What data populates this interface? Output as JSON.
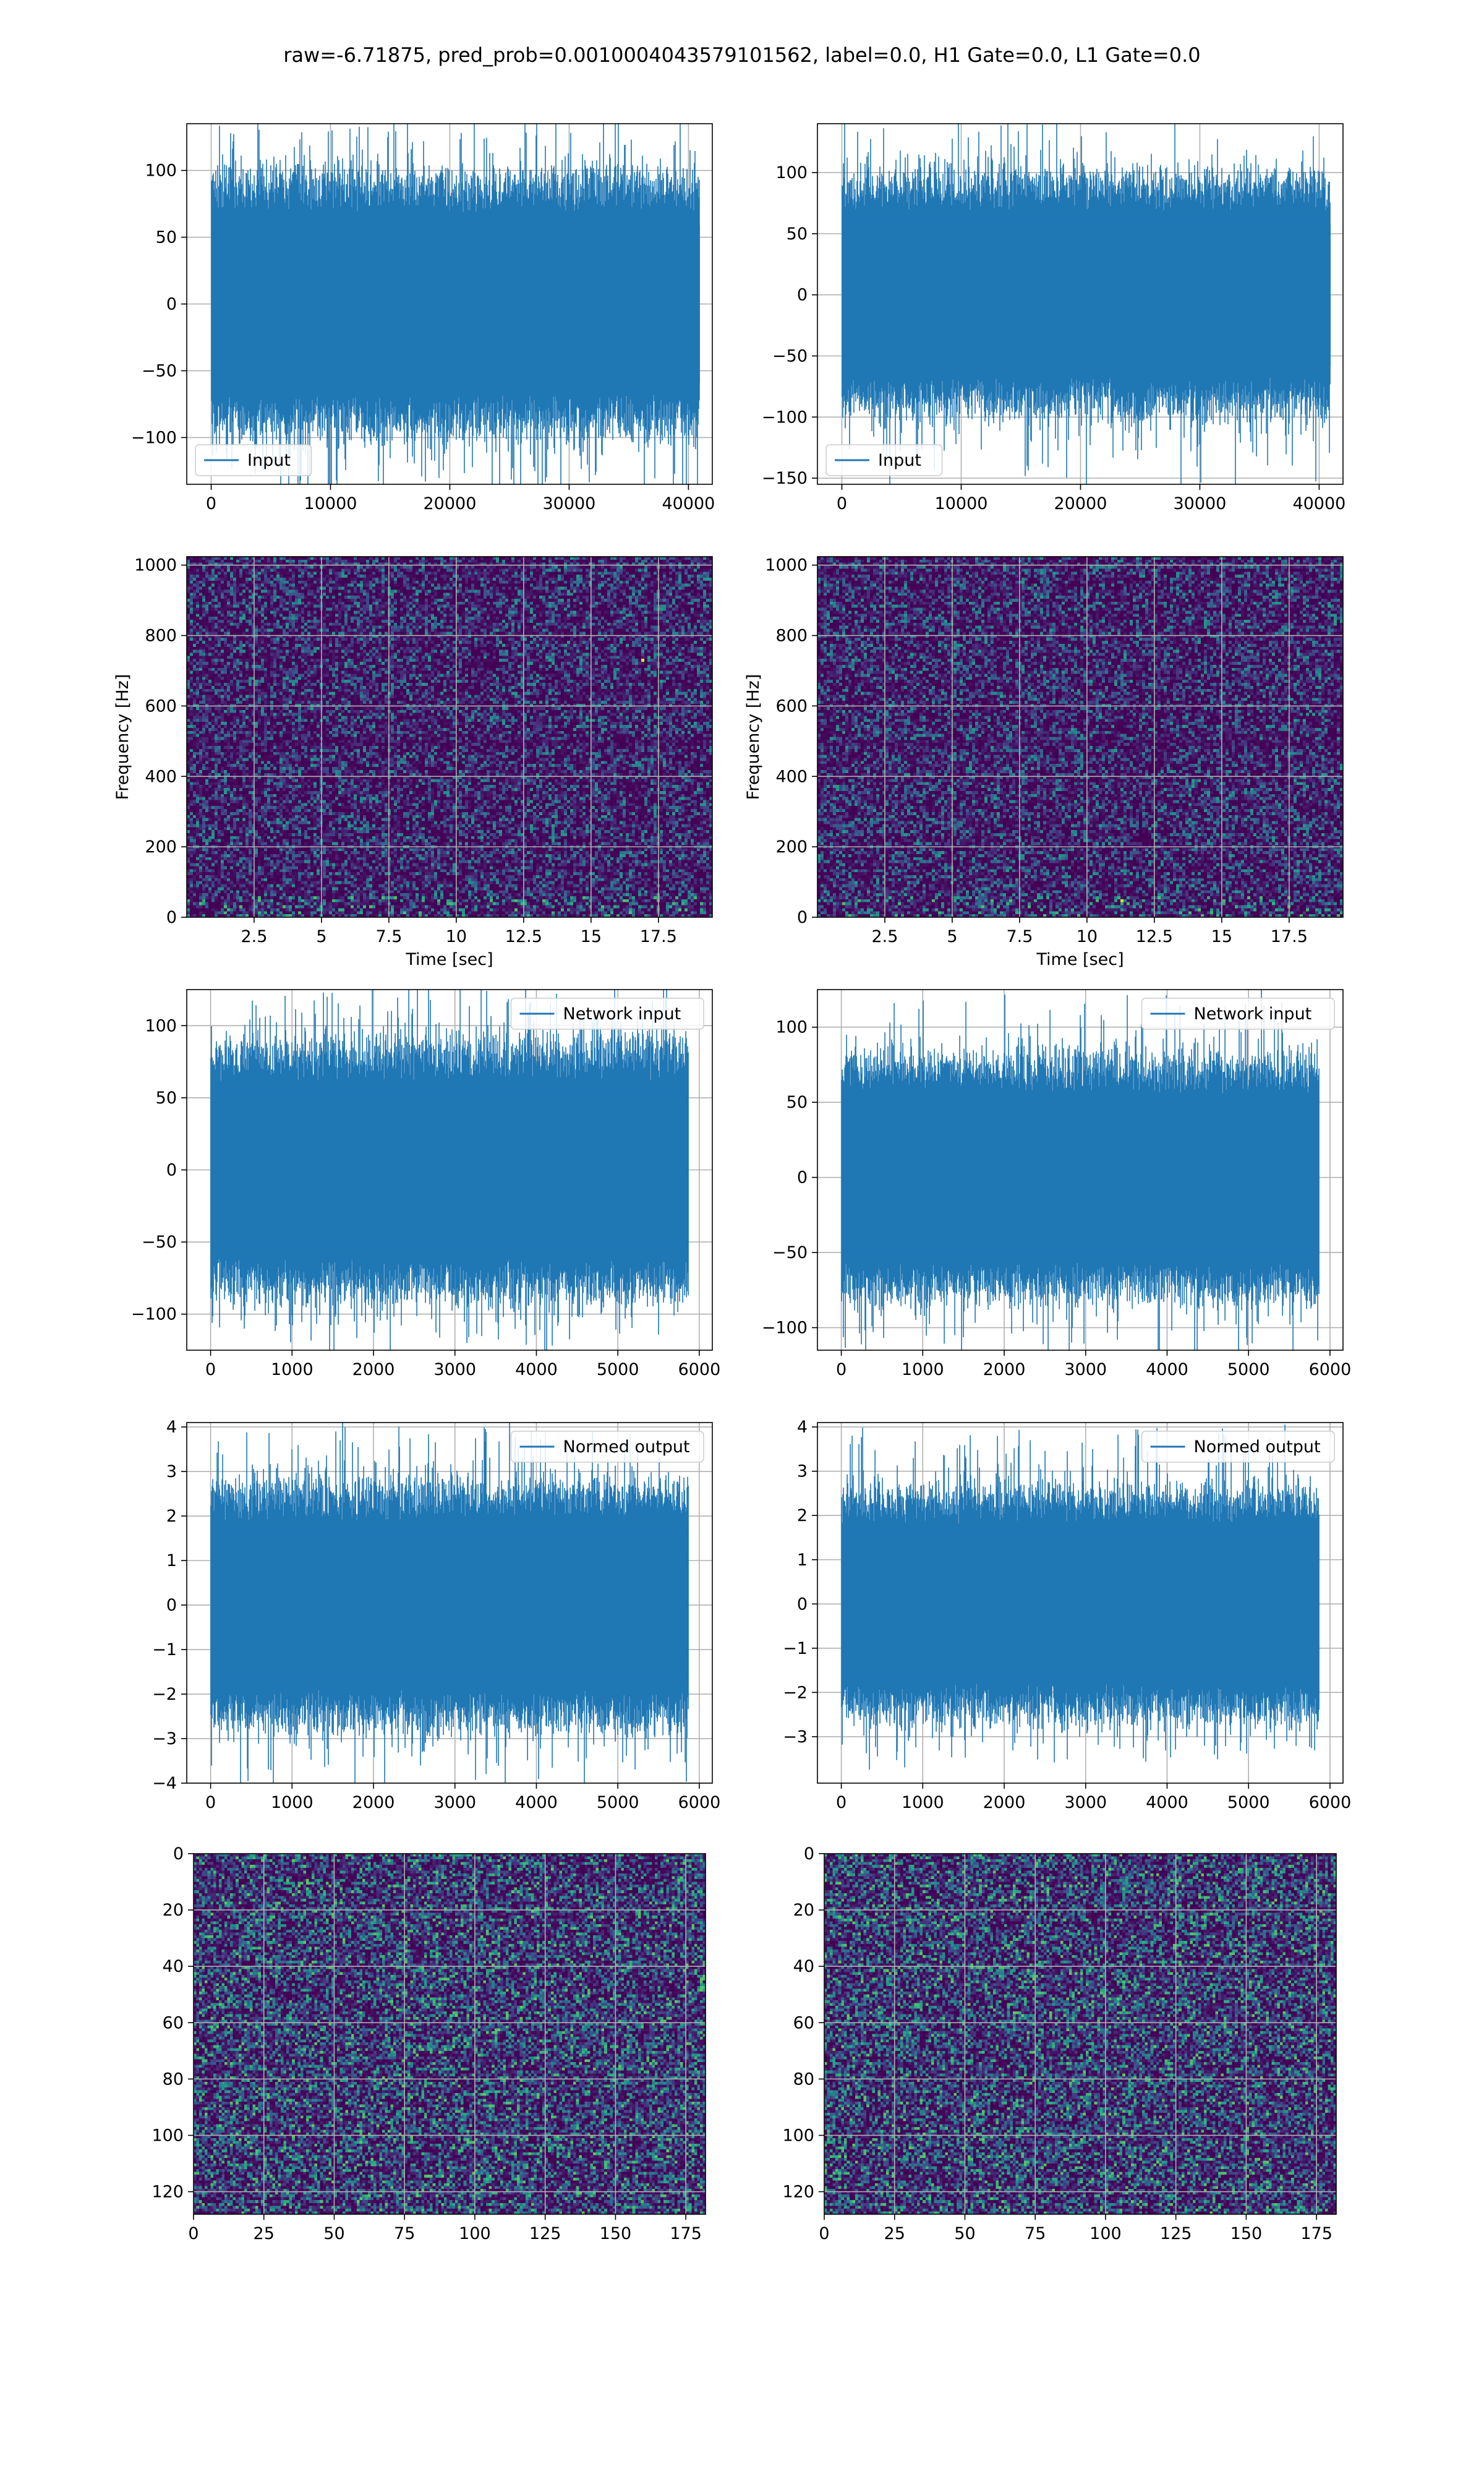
{
  "figure": {
    "title": "raw=-6.71875, pred_prob=0.0010004043579101562, label=0.0, H1 Gate=0.0, L1 Gate=0.0",
    "colors": {
      "line": "#1f77b4",
      "grid": "#b0b0b0",
      "frame": "#000000"
    },
    "viridis": [
      "#440154",
      "#472d7b",
      "#3b528b",
      "#2c728e",
      "#21918c",
      "#28ae80",
      "#5ec962",
      "#addc30",
      "#fde725"
    ]
  },
  "chart_data": [
    {
      "id": "input-left",
      "type": "line",
      "legend": "Input",
      "legend_loc": "lower-left",
      "series_length": 40960,
      "xlim": [
        -2048,
        42000
      ],
      "ylim": [
        -135,
        135
      ],
      "xticks": [
        0,
        10000,
        20000,
        30000,
        40000
      ],
      "yticks": [
        -100,
        -50,
        0,
        50,
        100
      ],
      "peak_max": 128,
      "peak_min": -132,
      "envelope": 75,
      "grid": true
    },
    {
      "id": "input-right",
      "type": "line",
      "legend": "Input",
      "legend_loc": "lower-left",
      "series_length": 40960,
      "xlim": [
        -2048,
        42000
      ],
      "ylim": [
        -155,
        140
      ],
      "xticks": [
        0,
        10000,
        20000,
        30000,
        40000
      ],
      "yticks": [
        -150,
        -100,
        -50,
        0,
        50,
        100
      ],
      "peak_max": 133,
      "peak_min": -140,
      "envelope": 75,
      "grid": true
    },
    {
      "id": "spectrogram-left",
      "type": "heatmap",
      "xlabel": "Time [sec]",
      "ylabel": "Frequency [Hz]",
      "xlim": [
        0,
        19.5
      ],
      "ylim": [
        0,
        1024
      ],
      "xticks": [
        2.5,
        5.0,
        7.5,
        10.0,
        12.5,
        15.0,
        17.5
      ],
      "yticks": [
        0,
        200,
        400,
        600,
        800,
        1000
      ],
      "notch_hz": 500,
      "hot_spots": [
        [
          16.9,
          730
        ]
      ],
      "grid": true
    },
    {
      "id": "spectrogram-right",
      "type": "heatmap",
      "xlabel": "Time [sec]",
      "ylabel": "Frequency [Hz]",
      "xlim": [
        0,
        19.5
      ],
      "ylim": [
        0,
        1024
      ],
      "xticks": [
        2.5,
        5.0,
        7.5,
        10.0,
        12.5,
        15.0,
        17.5
      ],
      "yticks": [
        0,
        200,
        400,
        600,
        800,
        1000
      ],
      "notch_hz": 500,
      "hot_spots": [
        [
          11.2,
          50
        ]
      ],
      "grid": true
    },
    {
      "id": "network-input-left",
      "type": "line",
      "legend": "Network input",
      "legend_loc": "upper-right",
      "series_length": 5868,
      "xlim": [
        -293,
        6160
      ],
      "ylim": [
        -125,
        125
      ],
      "xticks": [
        0,
        1000,
        2000,
        3000,
        4000,
        5000,
        6000
      ],
      "yticks": [
        -100,
        -50,
        0,
        50,
        100
      ],
      "peak_max": 115,
      "peak_min": -113,
      "envelope": 68,
      "grid": true
    },
    {
      "id": "network-input-right",
      "type": "line",
      "legend": "Network input",
      "legend_loc": "upper-right",
      "series_length": 5868,
      "xlim": [
        -293,
        6160
      ],
      "ylim": [
        -115,
        125
      ],
      "xticks": [
        0,
        1000,
        2000,
        3000,
        4000,
        5000,
        6000
      ],
      "yticks": [
        -100,
        -50,
        0,
        50,
        100
      ],
      "peak_max": 108,
      "peak_min": -108,
      "envelope": 62,
      "grid": true
    },
    {
      "id": "normed-output-left",
      "type": "line",
      "legend": "Normed output",
      "legend_loc": "upper-right",
      "series_length": 5868,
      "xlim": [
        -293,
        6160
      ],
      "ylim": [
        -4,
        4.1
      ],
      "xticks": [
        0,
        1000,
        2000,
        3000,
        4000,
        5000,
        6000
      ],
      "yticks": [
        -4,
        -3,
        -2,
        -1,
        0,
        1,
        2,
        3,
        4
      ],
      "peak_max": 3.7,
      "peak_min": -3.6,
      "envelope": 2.1,
      "grid": true
    },
    {
      "id": "normed-output-right",
      "type": "line",
      "legend": "Normed output",
      "legend_loc": "upper-right",
      "series_length": 5868,
      "xlim": [
        -293,
        6160
      ],
      "ylim": [
        -4.05,
        4.1
      ],
      "xticks": [
        0,
        1000,
        2000,
        3000,
        4000,
        5000,
        6000
      ],
      "yticks": [
        -3,
        -2,
        -1,
        0,
        1,
        2,
        3,
        4
      ],
      "peak_max": 3.7,
      "peak_min": -3.2,
      "envelope": 2.0,
      "grid": true
    },
    {
      "id": "image-left",
      "type": "heatmap",
      "rows": 128,
      "cols": 182,
      "xlim": [
        0,
        182
      ],
      "ylim": [
        128,
        0
      ],
      "xticks": [
        0,
        25,
        50,
        75,
        100,
        125,
        150,
        175
      ],
      "yticks": [
        0,
        20,
        40,
        60,
        80,
        100,
        120
      ],
      "grid": true
    },
    {
      "id": "image-right",
      "type": "heatmap",
      "rows": 128,
      "cols": 182,
      "xlim": [
        0,
        182
      ],
      "ylim": [
        128,
        0
      ],
      "xticks": [
        0,
        25,
        50,
        75,
        100,
        125,
        150,
        175
      ],
      "yticks": [
        0,
        20,
        40,
        60,
        80,
        100,
        120
      ],
      "grid": true
    }
  ]
}
